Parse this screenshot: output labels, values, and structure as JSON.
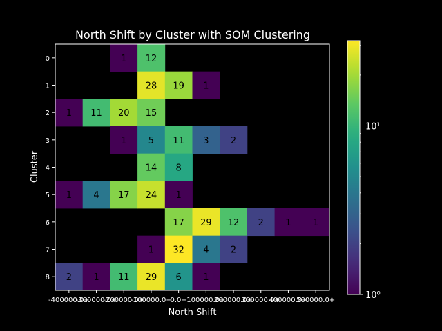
{
  "chart_data": {
    "type": "heatmap",
    "title": "North Shift by Cluster with SOM Clustering",
    "xlabel": "North Shift",
    "ylabel": "Cluster",
    "x_tick_labels": [
      "-400000.0+",
      "-300000.0+",
      "-200000.0+",
      "-100000.0+",
      "0.0+",
      "100000.0+",
      "200000.0+",
      "300000.0+",
      "400000.0+",
      "500000.0+"
    ],
    "y_tick_labels": [
      "0",
      "1",
      "2",
      "3",
      "4",
      "5",
      "6",
      "7",
      "8"
    ],
    "colorscale": "viridis",
    "color_scale_type": "log",
    "colorbar_range": [
      1,
      32
    ],
    "colorbar_ticks": [
      {
        "value": 1,
        "label": "10⁰"
      },
      {
        "value": 10,
        "label": "10¹"
      }
    ],
    "background_color": "#000000",
    "cells": [
      {
        "row": "0",
        "col": "-200000.0+",
        "value": 1
      },
      {
        "row": "0",
        "col": "-100000.0+",
        "value": 12
      },
      {
        "row": "1",
        "col": "-100000.0+",
        "value": 28
      },
      {
        "row": "1",
        "col": "0.0+",
        "value": 19
      },
      {
        "row": "1",
        "col": "100000.0+",
        "value": 1
      },
      {
        "row": "2",
        "col": "-400000.0+",
        "value": 1
      },
      {
        "row": "2",
        "col": "-300000.0+",
        "value": 11
      },
      {
        "row": "2",
        "col": "-200000.0+",
        "value": 20
      },
      {
        "row": "2",
        "col": "-100000.0+",
        "value": 15
      },
      {
        "row": "3",
        "col": "-200000.0+",
        "value": 1
      },
      {
        "row": "3",
        "col": "-100000.0+",
        "value": 5
      },
      {
        "row": "3",
        "col": "0.0+",
        "value": 11
      },
      {
        "row": "3",
        "col": "100000.0+",
        "value": 3
      },
      {
        "row": "3",
        "col": "200000.0+",
        "value": 2
      },
      {
        "row": "4",
        "col": "-100000.0+",
        "value": 14
      },
      {
        "row": "4",
        "col": "0.0+",
        "value": 8
      },
      {
        "row": "5",
        "col": "-400000.0+",
        "value": 1
      },
      {
        "row": "5",
        "col": "-300000.0+",
        "value": 4
      },
      {
        "row": "5",
        "col": "-200000.0+",
        "value": 17
      },
      {
        "row": "5",
        "col": "-100000.0+",
        "value": 24
      },
      {
        "row": "5",
        "col": "0.0+",
        "value": 1
      },
      {
        "row": "6",
        "col": "0.0+",
        "value": 17
      },
      {
        "row": "6",
        "col": "100000.0+",
        "value": 29
      },
      {
        "row": "6",
        "col": "200000.0+",
        "value": 12
      },
      {
        "row": "6",
        "col": "300000.0+",
        "value": 2
      },
      {
        "row": "6",
        "col": "400000.0+",
        "value": 1
      },
      {
        "row": "6",
        "col": "500000.0+",
        "value": 1
      },
      {
        "row": "7",
        "col": "-100000.0+",
        "value": 1
      },
      {
        "row": "7",
        "col": "0.0+",
        "value": 32
      },
      {
        "row": "7",
        "col": "100000.0+",
        "value": 4
      },
      {
        "row": "7",
        "col": "200000.0+",
        "value": 2
      },
      {
        "row": "8",
        "col": "-400000.0+",
        "value": 2
      },
      {
        "row": "8",
        "col": "-300000.0+",
        "value": 1
      },
      {
        "row": "8",
        "col": "-200000.0+",
        "value": 11
      },
      {
        "row": "8",
        "col": "-100000.0+",
        "value": 29
      },
      {
        "row": "8",
        "col": "0.0+",
        "value": 6
      },
      {
        "row": "8",
        "col": "100000.0+",
        "value": 1
      }
    ]
  }
}
